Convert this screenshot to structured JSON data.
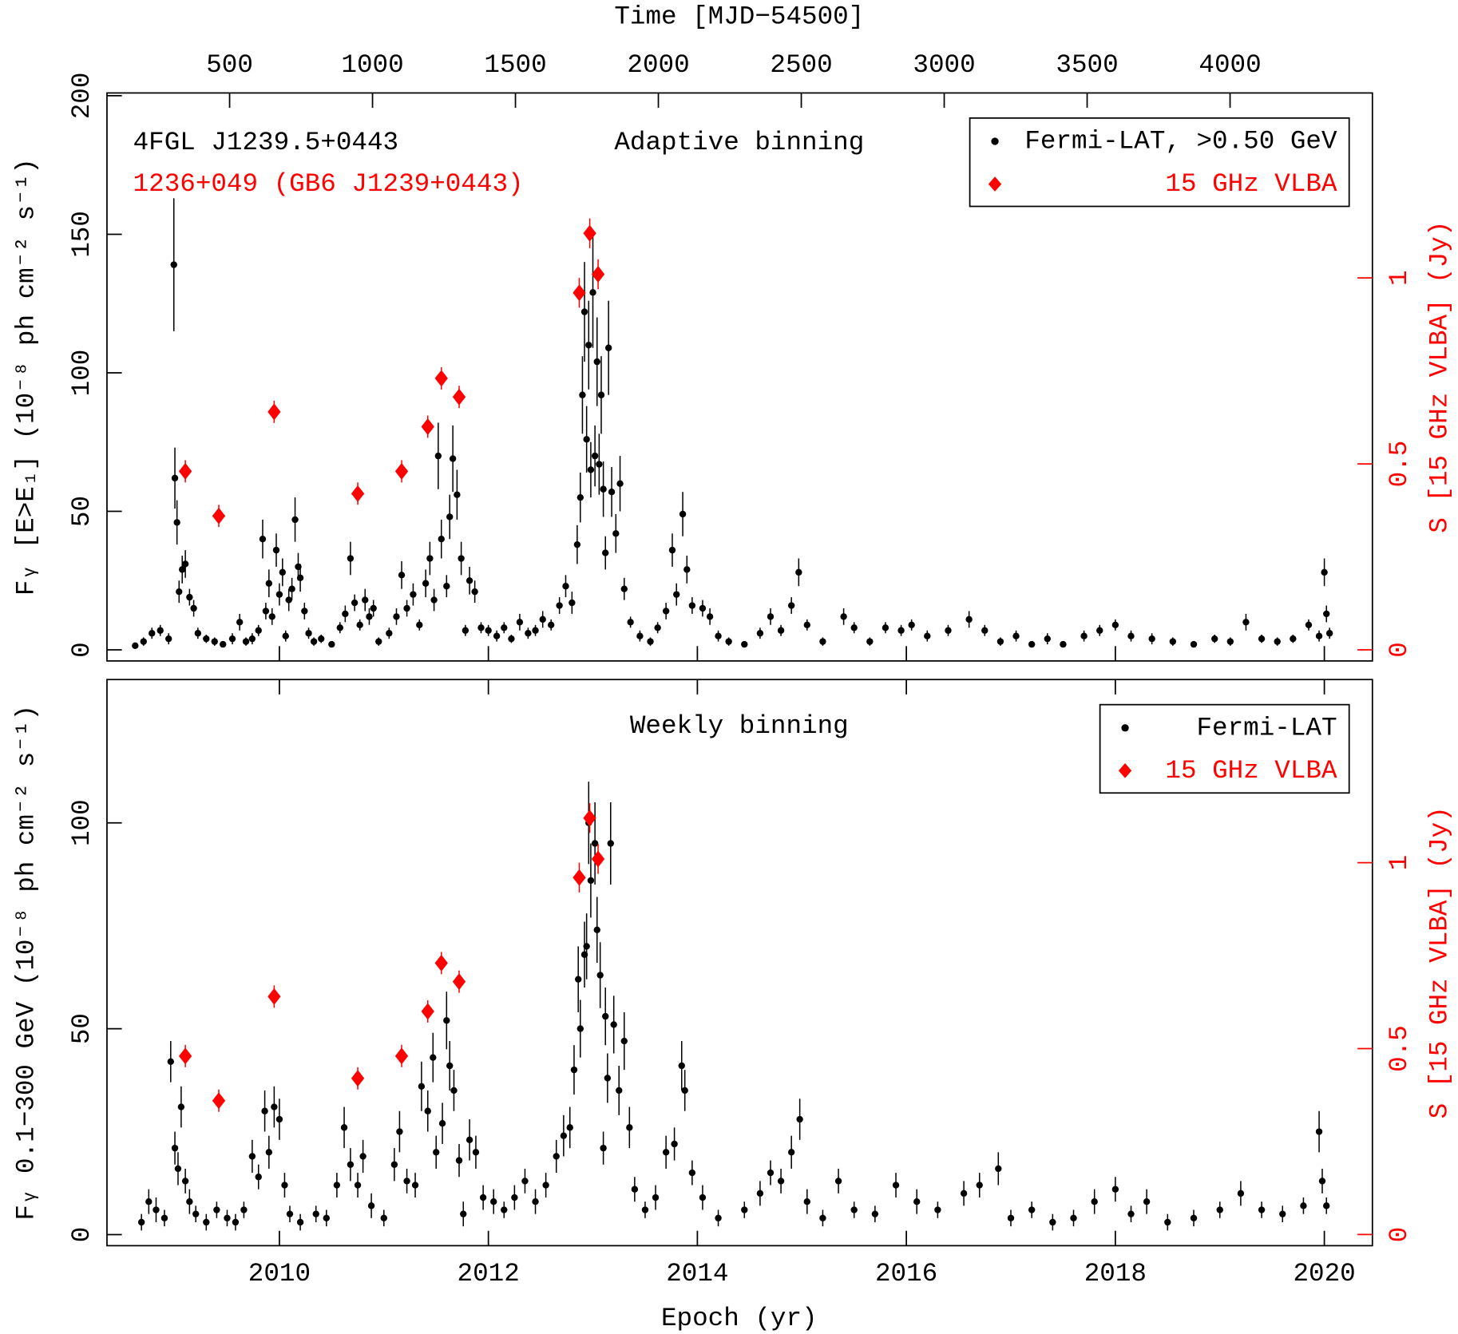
{
  "chart_data": [
    {
      "type": "scatter",
      "title": "Adaptive binning",
      "annotations": [
        {
          "text": "4FGL J1239.5+0443",
          "color": "#000000"
        },
        {
          "text": "1236+049 (GB6 J1239+0443)",
          "color": "#ff0000"
        }
      ],
      "x2_label": "Time [MJD−54500]",
      "y_label": "Fᵧ [E>E₁] (10⁻⁸ ph cm⁻² s⁻¹)",
      "y2_label": "S [15 GHz VLBA] (Jy)",
      "xlim": [
        2008.35,
        2020.46
      ],
      "x2lim": [
        71,
        4498
      ],
      "x2ticks": [
        500,
        1000,
        1500,
        2000,
        2500,
        3000,
        3500,
        4000
      ],
      "ylim": [
        -4,
        201
      ],
      "yticks": [
        0,
        50,
        100,
        150,
        200
      ],
      "y2lim": [
        -0.03,
        1.4975
      ],
      "y2ticks": [
        0,
        0.5,
        1
      ],
      "legend": "upper right",
      "series": [
        {
          "name": "Fermi-LAT, >0.50 GeV",
          "color": "#000000",
          "marker": "circle",
          "x": [
            2008.62,
            2008.7,
            2008.78,
            2008.86,
            2008.94,
            2008.99,
            2009.0,
            2009.02,
            2009.04,
            2009.07,
            2009.1,
            2009.14,
            2009.18,
            2009.22,
            2009.3,
            2009.38,
            2009.46,
            2009.55,
            2009.62,
            2009.68,
            2009.74,
            2009.8,
            2009.84,
            2009.87,
            2009.9,
            2009.93,
            2009.97,
            2010.0,
            2010.03,
            2010.06,
            2010.09,
            2010.12,
            2010.15,
            2010.18,
            2010.2,
            2010.24,
            2010.28,
            2010.33,
            2010.4,
            2010.5,
            2010.58,
            2010.63,
            2010.68,
            2010.72,
            2010.77,
            2010.82,
            2010.86,
            2010.9,
            2010.95,
            2011.05,
            2011.12,
            2011.17,
            2011.22,
            2011.28,
            2011.34,
            2011.4,
            2011.44,
            2011.48,
            2011.52,
            2011.55,
            2011.6,
            2011.63,
            2011.66,
            2011.7,
            2011.74,
            2011.78,
            2011.82,
            2011.87,
            2011.93,
            2012.0,
            2012.08,
            2012.15,
            2012.22,
            2012.3,
            2012.38,
            2012.45,
            2012.52,
            2012.6,
            2012.68,
            2012.74,
            2012.8,
            2012.85,
            2012.88,
            2012.9,
            2012.92,
            2012.94,
            2012.96,
            2012.98,
            2013.0,
            2013.02,
            2013.04,
            2013.06,
            2013.08,
            2013.1,
            2013.12,
            2013.15,
            2013.18,
            2013.22,
            2013.26,
            2013.3,
            2013.36,
            2013.45,
            2013.55,
            2013.62,
            2013.7,
            2013.76,
            2013.8,
            2013.86,
            2013.9,
            2013.95,
            2014.05,
            2014.12,
            2014.2,
            2014.3,
            2014.45,
            2014.6,
            2014.7,
            2014.8,
            2014.9,
            2014.97,
            2015.05,
            2015.2,
            2015.4,
            2015.5,
            2015.65,
            2015.8,
            2015.95,
            2016.05,
            2016.2,
            2016.4,
            2016.6,
            2016.75,
            2016.9,
            2017.05,
            2017.2,
            2017.35,
            2017.5,
            2017.7,
            2017.85,
            2018.0,
            2018.15,
            2018.35,
            2018.55,
            2018.75,
            2018.95,
            2019.1,
            2019.25,
            2019.4,
            2019.55,
            2019.7,
            2019.85,
            2019.95,
            2020.0,
            2020.02,
            2020.05
          ],
          "values": [
            1.5,
            3,
            6,
            7,
            4,
            139,
            62,
            46,
            21,
            29,
            31,
            19,
            15,
            6,
            4,
            3,
            2,
            4,
            10,
            3,
            4,
            7,
            40,
            14,
            24,
            12,
            36,
            20,
            28,
            5,
            18,
            22,
            47,
            30,
            26,
            14,
            6,
            3,
            4,
            2,
            8,
            13,
            33,
            17,
            9,
            18,
            12,
            15,
            3,
            6,
            12,
            27,
            15,
            20,
            9,
            24,
            33,
            18,
            70,
            40,
            23,
            48,
            69,
            56,
            33,
            7,
            25,
            21,
            8,
            7,
            5,
            8,
            4,
            10,
            6,
            7,
            11,
            9,
            16,
            23,
            17,
            38,
            55,
            92,
            122,
            76,
            110,
            65,
            129,
            70,
            104,
            67,
            92,
            58,
            35,
            109,
            57,
            42,
            60,
            22,
            10,
            5,
            3,
            8,
            14,
            36,
            20,
            49,
            29,
            16,
            15,
            12,
            5,
            3,
            2,
            6,
            12,
            7,
            16,
            28,
            9,
            3,
            12,
            8,
            3,
            8,
            7,
            9,
            5,
            7,
            11,
            7,
            3,
            5,
            2,
            4,
            2,
            5,
            7,
            9,
            5,
            4,
            3,
            2,
            4,
            3,
            10,
            4,
            3,
            4,
            9,
            5,
            28,
            13,
            6
          ],
          "errors": [
            1,
            1.5,
            2,
            2,
            2,
            24,
            11,
            8,
            4,
            5,
            5,
            3,
            3,
            2,
            1.5,
            1.5,
            1,
            2,
            3,
            1.5,
            2,
            2,
            7,
            3,
            5,
            3,
            6,
            4,
            5,
            2,
            4,
            4,
            8,
            5,
            5,
            3,
            2,
            1.5,
            1.5,
            1,
            2,
            3,
            6,
            3,
            2,
            4,
            3,
            3,
            1.5,
            2,
            3,
            5,
            3,
            4,
            2,
            5,
            6,
            4,
            12,
            7,
            4,
            8,
            12,
            9,
            6,
            2,
            5,
            4,
            2,
            2,
            2,
            2,
            1.5,
            3,
            2,
            2,
            3,
            2,
            3,
            4,
            4,
            7,
            9,
            14,
            18,
            12,
            16,
            10,
            20,
            11,
            16,
            11,
            14,
            10,
            6,
            17,
            9,
            7,
            10,
            4,
            2,
            2,
            1.5,
            2,
            3,
            6,
            4,
            8,
            5,
            3,
            3,
            3,
            2,
            1.5,
            1,
            2,
            3,
            2,
            3,
            5,
            2,
            1.5,
            3,
            2,
            1.5,
            2,
            2,
            2,
            2,
            2,
            3,
            2,
            1.5,
            2,
            1,
            2,
            1,
            2,
            2,
            2,
            2,
            2,
            1.5,
            1,
            1.5,
            1.5,
            3,
            1.5,
            1.5,
            1.5,
            2,
            2,
            5,
            3,
            2
          ]
        },
        {
          "name": "15 GHz VLBA",
          "color": "#ff0000",
          "marker": "diamond",
          "axis": "y2",
          "x": [
            2009.1,
            2009.42,
            2009.95,
            2010.75,
            2011.17,
            2011.42,
            2011.55,
            2011.72,
            2012.87,
            2012.97,
            2013.05
          ],
          "values": [
            0.48,
            0.36,
            0.64,
            0.42,
            0.48,
            0.6,
            0.73,
            0.68,
            0.96,
            1.12,
            1.01
          ],
          "errors": [
            0.03,
            0.03,
            0.03,
            0.03,
            0.03,
            0.03,
            0.03,
            0.03,
            0.04,
            0.04,
            0.04
          ]
        }
      ]
    },
    {
      "type": "scatter",
      "title": "Weekly binning",
      "x_label": "Epoch (yr)",
      "y_label": "Fᵧ 0.1−300 GeV (10⁻⁸ ph cm⁻² s⁻¹)",
      "y2_label": "S [15 GHz VLBA] (Jy)",
      "xlim": [
        2008.35,
        2020.46
      ],
      "xticks": [
        2010,
        2012,
        2014,
        2016,
        2018,
        2020
      ],
      "ylim": [
        -2.7,
        134.8
      ],
      "yticks": [
        0,
        50,
        100
      ],
      "y2lim": [
        -0.03,
        1.4925
      ],
      "y2ticks": [
        0,
        0.5,
        1
      ],
      "legend": "upper right",
      "series": [
        {
          "name": "Fermi-LAT",
          "color": "#000000",
          "marker": "circle",
          "x": [
            2008.68,
            2008.75,
            2008.82,
            2008.9,
            2008.96,
            2009.0,
            2009.03,
            2009.06,
            2009.1,
            2009.14,
            2009.2,
            2009.3,
            2009.4,
            2009.5,
            2009.58,
            2009.66,
            2009.74,
            2009.8,
            2009.86,
            2009.9,
            2009.95,
            2010.0,
            2010.05,
            2010.1,
            2010.2,
            2010.35,
            2010.45,
            2010.55,
            2010.62,
            2010.68,
            2010.75,
            2010.8,
            2010.88,
            2011.0,
            2011.1,
            2011.15,
            2011.22,
            2011.3,
            2011.36,
            2011.42,
            2011.47,
            2011.5,
            2011.56,
            2011.6,
            2011.63,
            2011.67,
            2011.72,
            2011.76,
            2011.82,
            2011.88,
            2011.95,
            2012.05,
            2012.15,
            2012.25,
            2012.35,
            2012.45,
            2012.55,
            2012.65,
            2012.72,
            2012.78,
            2012.82,
            2012.86,
            2012.88,
            2012.92,
            2012.94,
            2012.96,
            2012.98,
            2013.02,
            2013.04,
            2013.07,
            2013.1,
            2013.12,
            2013.14,
            2013.17,
            2013.2,
            2013.25,
            2013.3,
            2013.35,
            2013.4,
            2013.5,
            2013.6,
            2013.7,
            2013.78,
            2013.85,
            2013.88,
            2013.95,
            2014.05,
            2014.2,
            2014.45,
            2014.6,
            2014.7,
            2014.8,
            2014.9,
            2014.98,
            2015.05,
            2015.2,
            2015.35,
            2015.5,
            2015.7,
            2015.9,
            2016.1,
            2016.3,
            2016.55,
            2016.7,
            2016.88,
            2017.0,
            2017.2,
            2017.4,
            2017.6,
            2017.8,
            2018.0,
            2018.15,
            2018.3,
            2018.5,
            2018.75,
            2019.0,
            2019.2,
            2019.4,
            2019.6,
            2019.8,
            2019.95,
            2019.98,
            2020.02
          ],
          "values": [
            3,
            8,
            6,
            4,
            42,
            21,
            16,
            31,
            13,
            8,
            5,
            3,
            6,
            4,
            3,
            6,
            19,
            14,
            30,
            20,
            31,
            28,
            12,
            5,
            3,
            5,
            4,
            12,
            26,
            17,
            12,
            19,
            7,
            4,
            17,
            25,
            13,
            12,
            36,
            30,
            43,
            20,
            27,
            52,
            41,
            35,
            18,
            5,
            23,
            20,
            9,
            8,
            6,
            9,
            13,
            8,
            12,
            19,
            24,
            26,
            40,
            62,
            50,
            68,
            70,
            100,
            86,
            95,
            74,
            63,
            21,
            53,
            38,
            95,
            51,
            35,
            47,
            26,
            11,
            6,
            9,
            20,
            22,
            41,
            35,
            15,
            9,
            4,
            6,
            10,
            15,
            13,
            20,
            28,
            8,
            4,
            13,
            6,
            5,
            12,
            8,
            6,
            10,
            12,
            16,
            4,
            6,
            3,
            4,
            8,
            11,
            5,
            8,
            3,
            4,
            6,
            10,
            6,
            5,
            7,
            25,
            13,
            7
          ],
          "errors": [
            2,
            3,
            3,
            2,
            5,
            4,
            4,
            5,
            3,
            3,
            2,
            2,
            2,
            2,
            2,
            2,
            4,
            3,
            5,
            4,
            5,
            5,
            3,
            2,
            2,
            2,
            2,
            3,
            5,
            4,
            3,
            4,
            3,
            2,
            4,
            5,
            3,
            3,
            6,
            5,
            6,
            4,
            5,
            7,
            6,
            5,
            4,
            3,
            5,
            4,
            3,
            3,
            2,
            3,
            3,
            3,
            3,
            4,
            5,
            5,
            6,
            8,
            7,
            8,
            8,
            10,
            9,
            10,
            8,
            8,
            4,
            7,
            6,
            10,
            7,
            6,
            7,
            5,
            3,
            2,
            3,
            4,
            4,
            6,
            5,
            3,
            3,
            2,
            2,
            3,
            3,
            3,
            4,
            5,
            3,
            2,
            3,
            2,
            2,
            3,
            3,
            2,
            3,
            3,
            4,
            2,
            2,
            2,
            2,
            3,
            3,
            2,
            3,
            2,
            2,
            2,
            3,
            2,
            2,
            2,
            5,
            3,
            2
          ]
        },
        {
          "name": "15 GHz VLBA",
          "color": "#ff0000",
          "marker": "diamond",
          "axis": "y2",
          "x": [
            2009.1,
            2009.42,
            2009.95,
            2010.75,
            2011.17,
            2011.42,
            2011.55,
            2011.72,
            2012.87,
            2012.97,
            2013.05
          ],
          "values": [
            0.48,
            0.36,
            0.64,
            0.42,
            0.48,
            0.6,
            0.73,
            0.68,
            0.96,
            1.12,
            1.01
          ],
          "errors": [
            0.03,
            0.03,
            0.03,
            0.03,
            0.03,
            0.03,
            0.03,
            0.03,
            0.04,
            0.04,
            0.04
          ]
        }
      ]
    }
  ]
}
